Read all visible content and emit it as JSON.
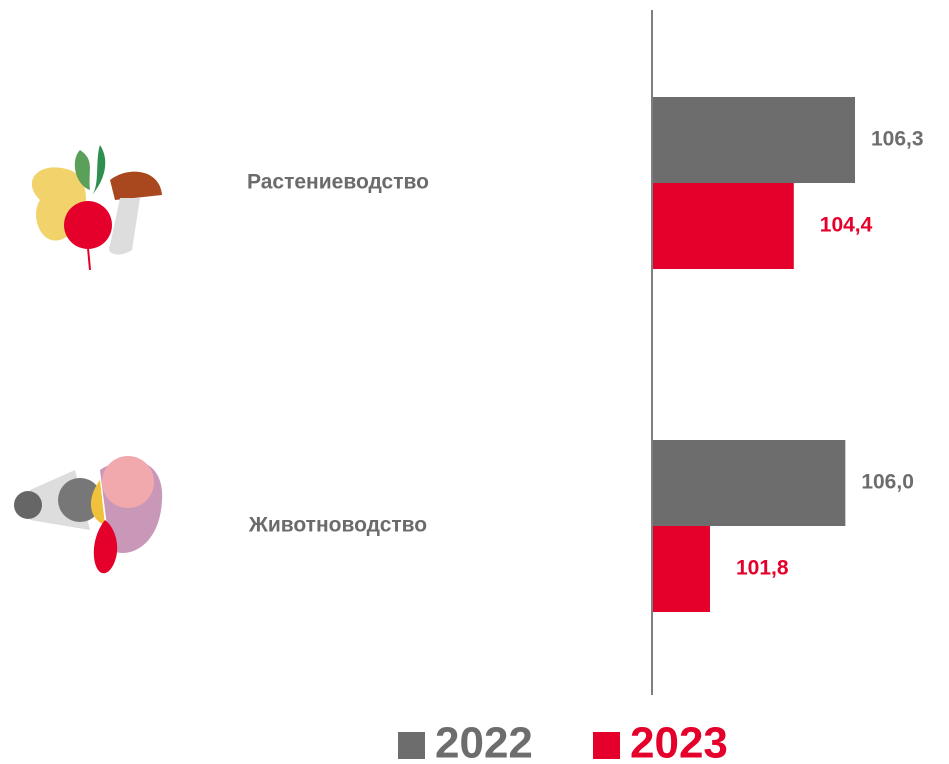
{
  "chart_data": {
    "type": "hbar",
    "categories": [
      "Растениеводство",
      "Животноводство"
    ],
    "series": [
      {
        "name": "2022",
        "color": "#6d6d6d",
        "values": [
          106.3,
          106.0
        ],
        "value_labels": [
          "106,3",
          "106,0"
        ]
      },
      {
        "name": "2023",
        "color": "#e4002b",
        "values": [
          104.4,
          101.8
        ],
        "value_labels": [
          "104,4",
          "101,8"
        ]
      }
    ],
    "xlim": [
      100,
      109
    ]
  }
}
